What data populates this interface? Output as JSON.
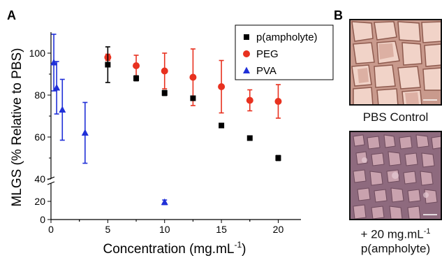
{
  "panel_a_label": "A",
  "panel_b_label": "B",
  "chart_data": {
    "type": "scatter",
    "xlabel": "Concentration (mg.mL",
    "xlabel_sup": "-1",
    "xlabel_close": ")",
    "ylabel": "MLGS (% Relative to PBS)",
    "xlim": [
      0,
      22
    ],
    "ylim_upper": [
      40,
      110
    ],
    "ylim_lower": [
      0,
      40
    ],
    "axis_break": true,
    "x_ticks": [
      0,
      5,
      10,
      15,
      20
    ],
    "y_ticks_upper": [
      40,
      60,
      80,
      100
    ],
    "y_ticks_lower": [
      0,
      20
    ],
    "grid": false,
    "legend_position": "top-right",
    "series": [
      {
        "name": "p(ampholyte)",
        "marker": "square",
        "color": "#000000",
        "points": [
          {
            "x": 5,
            "y": 94.5,
            "err": 8.5
          },
          {
            "x": 7.5,
            "y": 88.0,
            "err": 1.2
          },
          {
            "x": 10,
            "y": 81.0,
            "err": 1.2
          },
          {
            "x": 12.5,
            "y": 78.5,
            "err": 0
          },
          {
            "x": 15,
            "y": 65.5,
            "err": 0
          },
          {
            "x": 17.5,
            "y": 59.5,
            "err": 0
          },
          {
            "x": 20,
            "y": 50.0,
            "err": 1.2
          }
        ]
      },
      {
        "name": "PEG",
        "marker": "circle",
        "color": "#e8311f",
        "points": [
          {
            "x": 5,
            "y": 98.0,
            "err": 1.5
          },
          {
            "x": 7.5,
            "y": 94.0,
            "err": 5.0
          },
          {
            "x": 10,
            "y": 91.5,
            "err": 8.5
          },
          {
            "x": 12.5,
            "y": 88.5,
            "err": 13.5
          },
          {
            "x": 15,
            "y": 84.0,
            "err": 12.5
          },
          {
            "x": 17.5,
            "y": 77.5,
            "err": 5.0
          },
          {
            "x": 20,
            "y": 77.0,
            "err": 8.0
          }
        ]
      },
      {
        "name": "PVA",
        "marker": "triangle",
        "color": "#2030d8",
        "points": [
          {
            "x": 0.25,
            "y": 95.5,
            "err": 13.5
          },
          {
            "x": 0.5,
            "y": 83.5,
            "err": 12.5
          },
          {
            "x": 1,
            "y": 73.0,
            "err": 14.5
          },
          {
            "x": 3,
            "y": 62.0,
            "err": 14.5
          },
          {
            "x": 10,
            "y": 19.0,
            "err": 2.5
          }
        ]
      }
    ]
  },
  "panel_b": {
    "top_caption": "PBS Control",
    "bottom_caption_line1": "+ 20 mg.mL",
    "bottom_caption_sup": "-1",
    "bottom_caption_line2": "p(ampholyte)"
  }
}
